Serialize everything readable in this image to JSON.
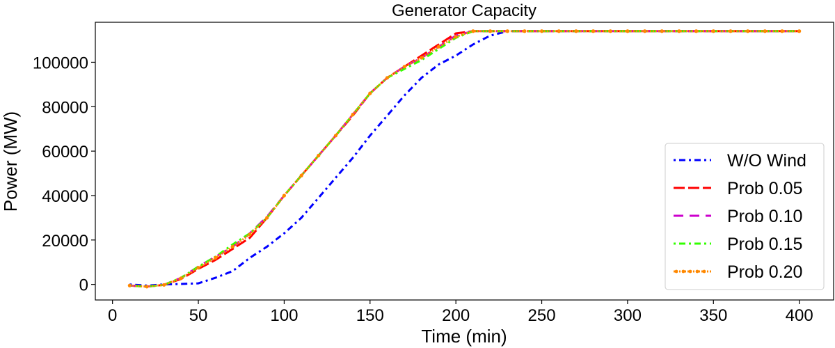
{
  "chart_data": {
    "type": "line",
    "title": "Generator Capacity",
    "xlabel": "Time (min)",
    "ylabel": "Power (MW)",
    "xlim": [
      -10,
      420
    ],
    "ylim": [
      -7000,
      118000
    ],
    "xticks": [
      0,
      50,
      100,
      150,
      200,
      250,
      300,
      350,
      400
    ],
    "yticks": [
      0,
      20000,
      40000,
      60000,
      80000,
      100000
    ],
    "grid": false,
    "legend_position": "lower-right",
    "series": [
      {
        "name": "W/O Wind",
        "color": "#0000ff",
        "dash": "dashdot",
        "x": [
          10,
          20,
          30,
          40,
          50,
          60,
          70,
          80,
          90,
          100,
          110,
          120,
          130,
          140,
          150,
          160,
          170,
          180,
          190,
          200,
          210,
          220,
          230,
          240,
          250,
          260,
          270,
          280,
          290,
          300,
          310,
          320,
          330,
          340,
          350,
          360,
          370,
          380,
          390,
          400
        ],
        "y": [
          0,
          -500,
          0,
          200,
          500,
          3000,
          6000,
          12000,
          17000,
          23000,
          30000,
          39000,
          48000,
          57000,
          67000,
          76000,
          85000,
          93000,
          99000,
          103000,
          108000,
          112000,
          114000,
          114000,
          114000,
          114000,
          114000,
          114000,
          114000,
          114000,
          114000,
          114000,
          114000,
          114000,
          114000,
          114000,
          114000,
          114000,
          114000,
          114000
        ]
      },
      {
        "name": "Prob 0.05",
        "color": "#ff0000",
        "dash": "longdash",
        "x": [
          10,
          20,
          30,
          40,
          50,
          60,
          70,
          80,
          90,
          100,
          110,
          120,
          130,
          140,
          150,
          160,
          170,
          180,
          190,
          200,
          210,
          220,
          230,
          240,
          250,
          260,
          270,
          280,
          290,
          300,
          310,
          320,
          330,
          340,
          350,
          360,
          370,
          380,
          390,
          400
        ],
        "y": [
          -500,
          -1000,
          -200,
          2500,
          7000,
          11000,
          16000,
          21000,
          30000,
          40000,
          49000,
          58000,
          67000,
          76000,
          86000,
          93000,
          98000,
          103000,
          108000,
          113000,
          114000,
          114000,
          114000,
          114000,
          114000,
          114000,
          114000,
          114000,
          114000,
          114000,
          114000,
          114000,
          114000,
          114000,
          114000,
          114000,
          114000,
          114000,
          114000,
          114000
        ]
      },
      {
        "name": "Prob 0.10",
        "color": "#cc00cc",
        "dash": "dash",
        "x": [
          10,
          20,
          30,
          40,
          50,
          60,
          70,
          80,
          90,
          100,
          110,
          120,
          130,
          140,
          150,
          160,
          170,
          180,
          190,
          200,
          210,
          220,
          230,
          240,
          250,
          260,
          270,
          280,
          290,
          300,
          310,
          320,
          330,
          340,
          350,
          360,
          370,
          380,
          390,
          400
        ],
        "y": [
          -500,
          -1000,
          -200,
          3000,
          8000,
          12500,
          17000,
          23000,
          30500,
          40000,
          49000,
          58000,
          67000,
          76500,
          86000,
          93000,
          98000,
          102000,
          107000,
          112000,
          114000,
          114000,
          114000,
          114000,
          114000,
          114000,
          114000,
          114000,
          114000,
          114000,
          114000,
          114000,
          114000,
          114000,
          114000,
          114000,
          114000,
          114000,
          114000,
          114000
        ]
      },
      {
        "name": "Prob 0.15",
        "color": "#33ff00",
        "dash": "dashdot",
        "x": [
          10,
          20,
          30,
          40,
          50,
          60,
          70,
          80,
          90,
          100,
          110,
          120,
          130,
          140,
          150,
          160,
          170,
          180,
          190,
          200,
          210,
          220,
          230,
          240,
          250,
          260,
          270,
          280,
          290,
          300,
          310,
          320,
          330,
          340,
          350,
          360,
          370,
          380,
          390,
          400
        ],
        "y": [
          -500,
          -1000,
          -200,
          3000,
          8000,
          12500,
          18000,
          23000,
          30000,
          40000,
          49000,
          58000,
          67000,
          76500,
          86000,
          93000,
          97000,
          101000,
          106000,
          111000,
          114000,
          114000,
          114000,
          114000,
          114000,
          114000,
          114000,
          114000,
          114000,
          114000,
          114000,
          114000,
          114000,
          114000,
          114000,
          114000,
          114000,
          114000,
          114000,
          114000
        ]
      },
      {
        "name": "Prob 0.20",
        "color": "#ff8800",
        "dash": "dotmarker",
        "x": [
          10,
          20,
          30,
          40,
          50,
          60,
          70,
          80,
          90,
          100,
          110,
          120,
          130,
          140,
          150,
          160,
          170,
          180,
          190,
          200,
          210,
          220,
          230,
          240,
          250,
          260,
          270,
          280,
          290,
          300,
          310,
          320,
          330,
          340,
          350,
          360,
          370,
          380,
          390,
          400
        ],
        "y": [
          -500,
          -1000,
          -200,
          2800,
          7500,
          12000,
          17000,
          22500,
          30000,
          40000,
          49000,
          58000,
          67000,
          76500,
          86000,
          93000,
          98000,
          102000,
          107000,
          111500,
          114000,
          114000,
          114000,
          114000,
          114000,
          114000,
          114000,
          114000,
          114000,
          114000,
          114000,
          114000,
          114000,
          114000,
          114000,
          114000,
          114000,
          114000,
          114000,
          114000
        ]
      }
    ]
  }
}
